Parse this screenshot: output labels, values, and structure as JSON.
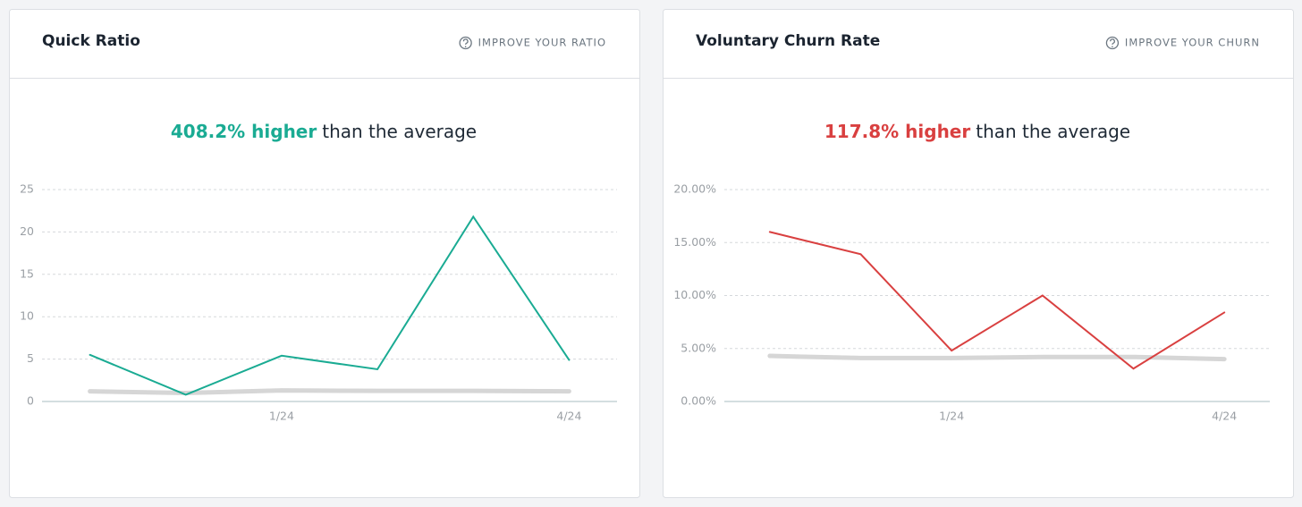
{
  "chart_data": [
    {
      "type": "line",
      "title": "Quick Ratio",
      "action": "IMPROVE YOUR RATIO",
      "headline": {
        "highlight": "408.2% higher",
        "rest": "than the average"
      },
      "highlight_color": "#1aab93",
      "categories": [
        null,
        null,
        "1/24",
        null,
        null,
        "4/24"
      ],
      "series": [
        {
          "color": "#1aab93",
          "values": [
            5.5,
            0.8,
            5.4,
            3.8,
            21.8,
            4.9
          ]
        },
        {
          "color": "#d6d6d6",
          "values": [
            1.2,
            1.0,
            1.3,
            1.25,
            1.25,
            1.2
          ]
        }
      ],
      "ylim": [
        0,
        25
      ],
      "yticks": [
        0,
        5,
        10,
        15,
        20,
        25
      ],
      "grid": true
    },
    {
      "type": "line",
      "title": "Voluntary Churn Rate",
      "action": "IMPROVE YOUR CHURN",
      "headline": {
        "highlight": "117.8% higher",
        "rest": "than the average"
      },
      "highlight_color": "#d94040",
      "categories": [
        null,
        null,
        "1/24",
        null,
        null,
        "4/24"
      ],
      "series": [
        {
          "color": "#d94040",
          "values": [
            16,
            13.9,
            4.8,
            10,
            3.1,
            8.4
          ]
        },
        {
          "color": "#d6d6d6",
          "values": [
            4.3,
            4.1,
            4.1,
            4.2,
            4.2,
            4.0
          ]
        }
      ],
      "ylim": [
        0,
        20
      ],
      "yticks": [
        {
          "value": 0,
          "label": "0.00%"
        },
        {
          "value": 5,
          "label": "5.00%"
        },
        {
          "value": 10,
          "label": "10.00%"
        },
        {
          "value": 15,
          "label": "15.00%"
        },
        {
          "value": 20,
          "label": "20.00%"
        }
      ],
      "grid": true
    }
  ]
}
